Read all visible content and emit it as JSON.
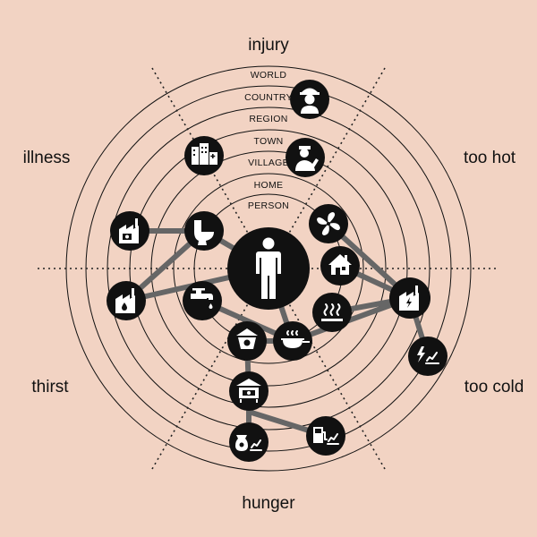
{
  "center": {
    "label": "person-icon"
  },
  "side_labels": {
    "top": "injury",
    "left": "illness",
    "right": "too  hot",
    "left_lower": "thirst",
    "right_lower": "too  cold",
    "bottom": "hunger"
  },
  "rings": [
    "WORLD",
    "COUNTRY",
    "REGION",
    "TOWN",
    "VILLAGE",
    "HOME",
    "PERSON"
  ],
  "nodes": [
    {
      "name": "soldier-node",
      "icon": "soldier-icon"
    },
    {
      "name": "city-hospital-node",
      "icon": "hospital-building-icon"
    },
    {
      "name": "doctor-node",
      "icon": "doctor-icon"
    },
    {
      "name": "medicine-factory-node",
      "icon": "factory-icon"
    },
    {
      "name": "toilet-node",
      "icon": "toilet-icon"
    },
    {
      "name": "fan-node",
      "icon": "fan-icon"
    },
    {
      "name": "house-node",
      "icon": "house-icon"
    },
    {
      "name": "water-plant-node",
      "icon": "water-factory-icon"
    },
    {
      "name": "tap-node",
      "icon": "tap-icon"
    },
    {
      "name": "heater-node",
      "icon": "heat-icon"
    },
    {
      "name": "power-plant-node",
      "icon": "power-factory-icon"
    },
    {
      "name": "energy-market-node",
      "icon": "energy-price-icon"
    },
    {
      "name": "food-scale-node",
      "icon": "scale-icon"
    },
    {
      "name": "cooking-pot-node",
      "icon": "pot-icon"
    },
    {
      "name": "food-store-node",
      "icon": "market-stall-icon"
    },
    {
      "name": "food-price-node",
      "icon": "food-price-icon"
    },
    {
      "name": "fuel-price-node",
      "icon": "fuel-price-icon"
    }
  ]
}
